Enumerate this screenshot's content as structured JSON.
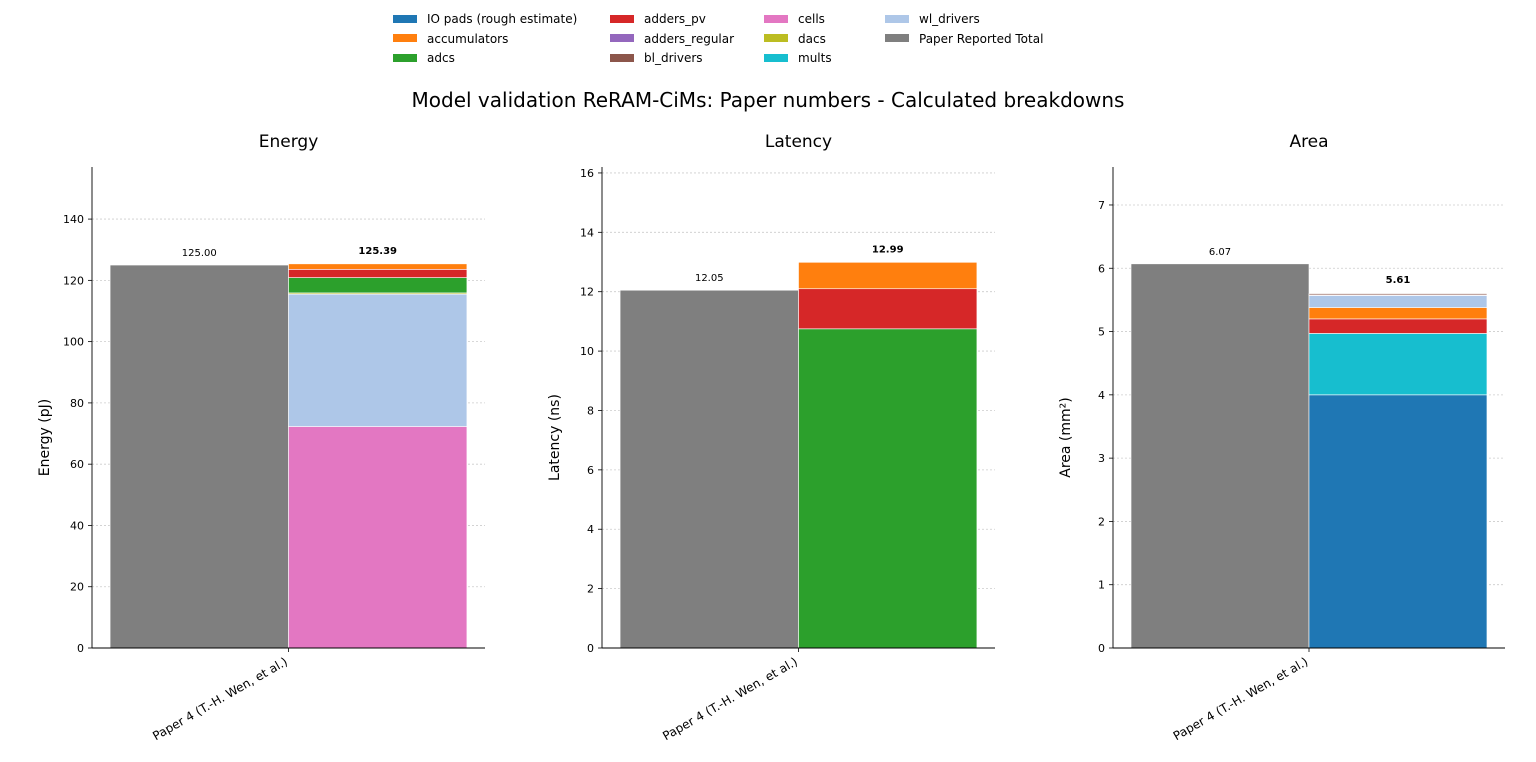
{
  "suptitle": "Model validation ReRAM-CiMs: Paper numbers - Calculated breakdowns",
  "legend": [
    {
      "label": "IO pads (rough estimate)",
      "color": "#1f77b4"
    },
    {
      "label": "accumulators",
      "color": "#ff7f0e"
    },
    {
      "label": "adcs",
      "color": "#2ca02c"
    },
    {
      "label": "adders_pv",
      "color": "#d62728"
    },
    {
      "label": "adders_regular",
      "color": "#9467bd"
    },
    {
      "label": "bl_drivers",
      "color": "#8c564b"
    },
    {
      "label": "cells",
      "color": "#e377c2"
    },
    {
      "label": "dacs",
      "color": "#bcbd22"
    },
    {
      "label": "mults",
      "color": "#17becf"
    },
    {
      "label": "wl_drivers",
      "color": "#aec7e8"
    },
    {
      "label": "Paper Reported Total",
      "color": "#7f7f7f"
    }
  ],
  "chart_data": [
    {
      "type": "bar",
      "title": "Energy",
      "ylabel": "Energy (pJ)",
      "ylim": [
        0,
        157
      ],
      "yticks": [
        0,
        20,
        40,
        60,
        80,
        100,
        120,
        140
      ],
      "grid": true,
      "categories": [
        "Paper 4 (T.-H. Wen, et al.)"
      ],
      "paper_total": {
        "value": 125.0,
        "label": "125.00"
      },
      "calculated_total": {
        "value": 125.39,
        "label": "125.39"
      },
      "stack": [
        {
          "name": "cells",
          "value": 72.3
        },
        {
          "name": "wl_drivers",
          "value": 43.2
        },
        {
          "name": "dacs",
          "value": 0.4
        },
        {
          "name": "adcs",
          "value": 5.0
        },
        {
          "name": "adders_pv",
          "value": 2.7
        },
        {
          "name": "accumulators",
          "value": 1.79
        }
      ]
    },
    {
      "type": "bar",
      "title": "Latency",
      "ylabel": "Latency (ns)",
      "ylim": [
        0,
        16.2
      ],
      "yticks": [
        0,
        2,
        4,
        6,
        8,
        10,
        12,
        14,
        16
      ],
      "grid": true,
      "categories": [
        "Paper 4 (T.-H. Wen, et al.)"
      ],
      "paper_total": {
        "value": 12.05,
        "label": "12.05"
      },
      "calculated_total": {
        "value": 12.99,
        "label": "12.99"
      },
      "stack": [
        {
          "name": "adcs",
          "value": 10.75
        },
        {
          "name": "adders_pv",
          "value": 1.35
        },
        {
          "name": "accumulators",
          "value": 0.89
        }
      ]
    },
    {
      "type": "bar",
      "title": "Area",
      "ylabel": "Area (mm²)",
      "ylim": [
        0,
        7.6
      ],
      "yticks": [
        0,
        1,
        2,
        3,
        4,
        5,
        6,
        7
      ],
      "grid": true,
      "categories": [
        "Paper 4 (T.-H. Wen, et al.)"
      ],
      "paper_total": {
        "value": 6.07,
        "label": "6.07"
      },
      "calculated_total": {
        "value": 5.61,
        "label": "5.61"
      },
      "stack": [
        {
          "name": "IO pads (rough estimate)",
          "value": 4.0
        },
        {
          "name": "mults",
          "value": 0.97
        },
        {
          "name": "adders_pv",
          "value": 0.23
        },
        {
          "name": "accumulators",
          "value": 0.18
        },
        {
          "name": "wl_drivers",
          "value": 0.19
        },
        {
          "name": "cells",
          "value": 0.01
        },
        {
          "name": "bl_drivers",
          "value": 0.02
        }
      ]
    }
  ]
}
